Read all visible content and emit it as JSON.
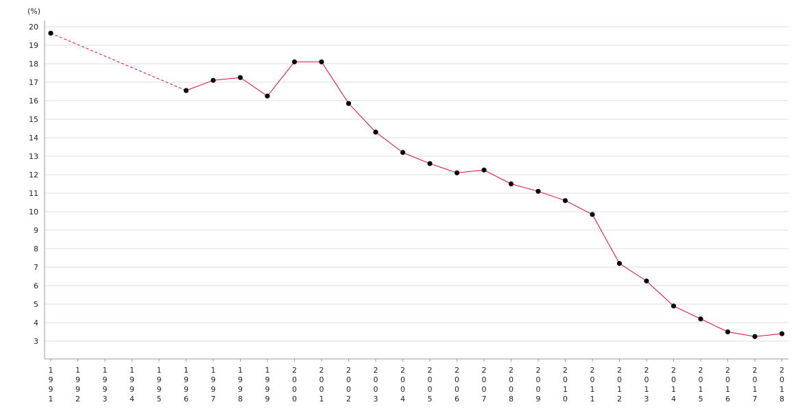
{
  "chart_data": {
    "type": "line",
    "title": "",
    "xlabel": "",
    "ylabel": "(%)",
    "x": [
      "1991",
      "1992",
      "1993",
      "1994",
      "1995",
      "1996",
      "1997",
      "1998",
      "1999",
      "2000",
      "2001",
      "2002",
      "2003",
      "2004",
      "2005",
      "2006",
      "2007",
      "2008",
      "2009",
      "2010",
      "2011",
      "2012",
      "2013",
      "2014",
      "2015",
      "2016",
      "2017",
      "2018"
    ],
    "series": [
      {
        "values": [
          19.65,
          null,
          null,
          null,
          null,
          16.55,
          17.1,
          17.25,
          16.25,
          18.1,
          18.1,
          15.85,
          14.3,
          13.2,
          12.6,
          12.1,
          12.25,
          11.5,
          11.1,
          10.6,
          9.85,
          7.2,
          6.25,
          4.9,
          4.2,
          3.5,
          3.25,
          3.4
        ],
        "color": "#e8003c",
        "marker_color": "#000000",
        "gap_style": "dashed"
      }
    ],
    "yticks": [
      "3",
      "4",
      "5",
      "6",
      "7",
      "8",
      "9",
      "10",
      "11",
      "12",
      "13",
      "14",
      "15",
      "16",
      "17",
      "18",
      "19",
      "20"
    ],
    "ylim": [
      2,
      20.5
    ],
    "grid": true,
    "legend": "none"
  }
}
